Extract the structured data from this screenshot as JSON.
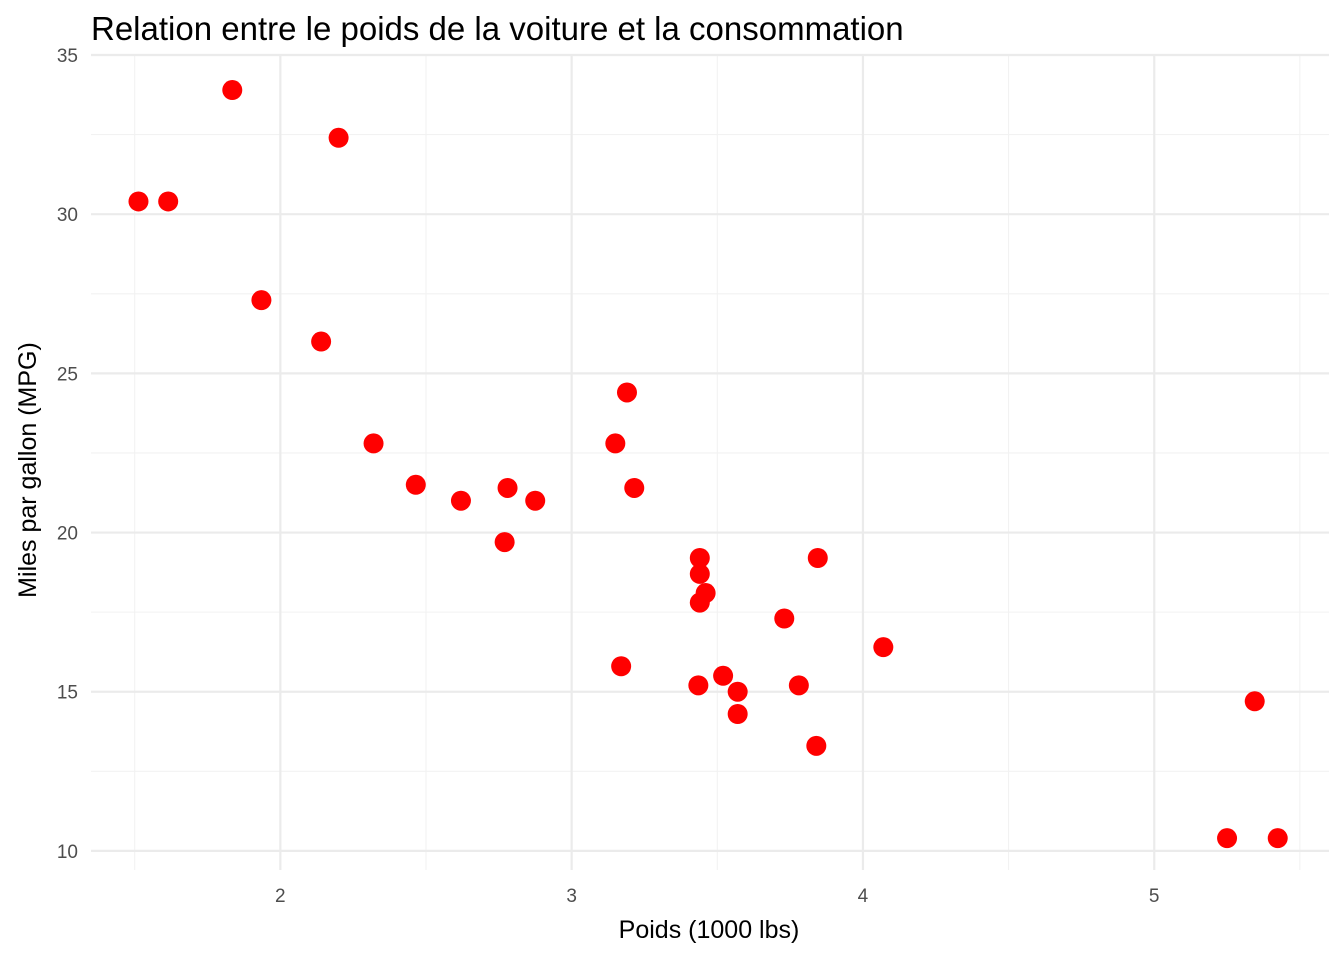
{
  "chart_data": {
    "type": "scatter",
    "title": "Relation entre le poids de la voiture et la consommation",
    "xlabel": "Poids (1000 lbs)",
    "ylabel": "Miles par gallon (MPG)",
    "xlim": [
      1.35,
      5.6
    ],
    "ylim": [
      9.4,
      35.0
    ],
    "x_ticks": [
      2,
      3,
      4,
      5
    ],
    "y_ticks": [
      10,
      15,
      20,
      25,
      30,
      35
    ],
    "x_minor": [
      1.5,
      2.5,
      3.5,
      4.5,
      5.5
    ],
    "y_minor": [
      12.5,
      17.5,
      22.5,
      27.5,
      32.5
    ],
    "grid": true,
    "legend": "none",
    "point_color": "#ff0000",
    "points": [
      {
        "x": 2.62,
        "y": 21.0
      },
      {
        "x": 2.875,
        "y": 21.0
      },
      {
        "x": 2.32,
        "y": 22.8
      },
      {
        "x": 3.215,
        "y": 21.4
      },
      {
        "x": 3.44,
        "y": 18.7
      },
      {
        "x": 3.46,
        "y": 18.1
      },
      {
        "x": 3.57,
        "y": 14.3
      },
      {
        "x": 3.19,
        "y": 24.4
      },
      {
        "x": 3.15,
        "y": 22.8
      },
      {
        "x": 3.44,
        "y": 19.2
      },
      {
        "x": 3.44,
        "y": 17.8
      },
      {
        "x": 4.07,
        "y": 16.4
      },
      {
        "x": 3.73,
        "y": 17.3
      },
      {
        "x": 3.78,
        "y": 15.2
      },
      {
        "x": 5.25,
        "y": 10.4
      },
      {
        "x": 5.424,
        "y": 10.4
      },
      {
        "x": 5.345,
        "y": 14.7
      },
      {
        "x": 2.2,
        "y": 32.4
      },
      {
        "x": 1.615,
        "y": 30.4
      },
      {
        "x": 1.835,
        "y": 33.9
      },
      {
        "x": 2.465,
        "y": 21.5
      },
      {
        "x": 3.52,
        "y": 15.5
      },
      {
        "x": 3.435,
        "y": 15.2
      },
      {
        "x": 3.84,
        "y": 13.3
      },
      {
        "x": 3.845,
        "y": 19.2
      },
      {
        "x": 1.935,
        "y": 27.3
      },
      {
        "x": 2.14,
        "y": 26.0
      },
      {
        "x": 1.513,
        "y": 30.4
      },
      {
        "x": 3.17,
        "y": 15.8
      },
      {
        "x": 2.77,
        "y": 19.7
      },
      {
        "x": 3.57,
        "y": 15.0
      },
      {
        "x": 2.78,
        "y": 21.4
      }
    ]
  }
}
